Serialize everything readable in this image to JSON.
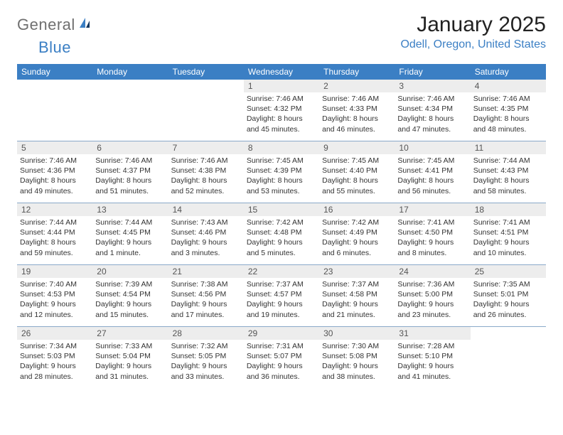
{
  "brand": {
    "part1": "General",
    "part2": "Blue"
  },
  "title": "January 2025",
  "location": "Odell, Oregon, United States",
  "colors": {
    "accent": "#3b7fc4",
    "header_bg": "#3b7fc4",
    "header_text": "#ffffff",
    "daynum_bg": "#ededed",
    "row_border": "#8aa9c9",
    "body_text": "#333333",
    "logo_gray": "#6f6f6f"
  },
  "day_labels": [
    "Sunday",
    "Monday",
    "Tuesday",
    "Wednesday",
    "Thursday",
    "Friday",
    "Saturday"
  ],
  "weeks": [
    [
      {
        "n": "",
        "sr": "",
        "ss": "",
        "dl": "",
        "empty": true
      },
      {
        "n": "",
        "sr": "",
        "ss": "",
        "dl": "",
        "empty": true
      },
      {
        "n": "",
        "sr": "",
        "ss": "",
        "dl": "",
        "empty": true
      },
      {
        "n": "1",
        "sr": "Sunrise: 7:46 AM",
        "ss": "Sunset: 4:32 PM",
        "dl": "Daylight: 8 hours and 45 minutes."
      },
      {
        "n": "2",
        "sr": "Sunrise: 7:46 AM",
        "ss": "Sunset: 4:33 PM",
        "dl": "Daylight: 8 hours and 46 minutes."
      },
      {
        "n": "3",
        "sr": "Sunrise: 7:46 AM",
        "ss": "Sunset: 4:34 PM",
        "dl": "Daylight: 8 hours and 47 minutes."
      },
      {
        "n": "4",
        "sr": "Sunrise: 7:46 AM",
        "ss": "Sunset: 4:35 PM",
        "dl": "Daylight: 8 hours and 48 minutes."
      }
    ],
    [
      {
        "n": "5",
        "sr": "Sunrise: 7:46 AM",
        "ss": "Sunset: 4:36 PM",
        "dl": "Daylight: 8 hours and 49 minutes."
      },
      {
        "n": "6",
        "sr": "Sunrise: 7:46 AM",
        "ss": "Sunset: 4:37 PM",
        "dl": "Daylight: 8 hours and 51 minutes."
      },
      {
        "n": "7",
        "sr": "Sunrise: 7:46 AM",
        "ss": "Sunset: 4:38 PM",
        "dl": "Daylight: 8 hours and 52 minutes."
      },
      {
        "n": "8",
        "sr": "Sunrise: 7:45 AM",
        "ss": "Sunset: 4:39 PM",
        "dl": "Daylight: 8 hours and 53 minutes."
      },
      {
        "n": "9",
        "sr": "Sunrise: 7:45 AM",
        "ss": "Sunset: 4:40 PM",
        "dl": "Daylight: 8 hours and 55 minutes."
      },
      {
        "n": "10",
        "sr": "Sunrise: 7:45 AM",
        "ss": "Sunset: 4:41 PM",
        "dl": "Daylight: 8 hours and 56 minutes."
      },
      {
        "n": "11",
        "sr": "Sunrise: 7:44 AM",
        "ss": "Sunset: 4:43 PM",
        "dl": "Daylight: 8 hours and 58 minutes."
      }
    ],
    [
      {
        "n": "12",
        "sr": "Sunrise: 7:44 AM",
        "ss": "Sunset: 4:44 PM",
        "dl": "Daylight: 8 hours and 59 minutes."
      },
      {
        "n": "13",
        "sr": "Sunrise: 7:44 AM",
        "ss": "Sunset: 4:45 PM",
        "dl": "Daylight: 9 hours and 1 minute."
      },
      {
        "n": "14",
        "sr": "Sunrise: 7:43 AM",
        "ss": "Sunset: 4:46 PM",
        "dl": "Daylight: 9 hours and 3 minutes."
      },
      {
        "n": "15",
        "sr": "Sunrise: 7:42 AM",
        "ss": "Sunset: 4:48 PM",
        "dl": "Daylight: 9 hours and 5 minutes."
      },
      {
        "n": "16",
        "sr": "Sunrise: 7:42 AM",
        "ss": "Sunset: 4:49 PM",
        "dl": "Daylight: 9 hours and 6 minutes."
      },
      {
        "n": "17",
        "sr": "Sunrise: 7:41 AM",
        "ss": "Sunset: 4:50 PM",
        "dl": "Daylight: 9 hours and 8 minutes."
      },
      {
        "n": "18",
        "sr": "Sunrise: 7:41 AM",
        "ss": "Sunset: 4:51 PM",
        "dl": "Daylight: 9 hours and 10 minutes."
      }
    ],
    [
      {
        "n": "19",
        "sr": "Sunrise: 7:40 AM",
        "ss": "Sunset: 4:53 PM",
        "dl": "Daylight: 9 hours and 12 minutes."
      },
      {
        "n": "20",
        "sr": "Sunrise: 7:39 AM",
        "ss": "Sunset: 4:54 PM",
        "dl": "Daylight: 9 hours and 15 minutes."
      },
      {
        "n": "21",
        "sr": "Sunrise: 7:38 AM",
        "ss": "Sunset: 4:56 PM",
        "dl": "Daylight: 9 hours and 17 minutes."
      },
      {
        "n": "22",
        "sr": "Sunrise: 7:37 AM",
        "ss": "Sunset: 4:57 PM",
        "dl": "Daylight: 9 hours and 19 minutes."
      },
      {
        "n": "23",
        "sr": "Sunrise: 7:37 AM",
        "ss": "Sunset: 4:58 PM",
        "dl": "Daylight: 9 hours and 21 minutes."
      },
      {
        "n": "24",
        "sr": "Sunrise: 7:36 AM",
        "ss": "Sunset: 5:00 PM",
        "dl": "Daylight: 9 hours and 23 minutes."
      },
      {
        "n": "25",
        "sr": "Sunrise: 7:35 AM",
        "ss": "Sunset: 5:01 PM",
        "dl": "Daylight: 9 hours and 26 minutes."
      }
    ],
    [
      {
        "n": "26",
        "sr": "Sunrise: 7:34 AM",
        "ss": "Sunset: 5:03 PM",
        "dl": "Daylight: 9 hours and 28 minutes."
      },
      {
        "n": "27",
        "sr": "Sunrise: 7:33 AM",
        "ss": "Sunset: 5:04 PM",
        "dl": "Daylight: 9 hours and 31 minutes."
      },
      {
        "n": "28",
        "sr": "Sunrise: 7:32 AM",
        "ss": "Sunset: 5:05 PM",
        "dl": "Daylight: 9 hours and 33 minutes."
      },
      {
        "n": "29",
        "sr": "Sunrise: 7:31 AM",
        "ss": "Sunset: 5:07 PM",
        "dl": "Daylight: 9 hours and 36 minutes."
      },
      {
        "n": "30",
        "sr": "Sunrise: 7:30 AM",
        "ss": "Sunset: 5:08 PM",
        "dl": "Daylight: 9 hours and 38 minutes."
      },
      {
        "n": "31",
        "sr": "Sunrise: 7:28 AM",
        "ss": "Sunset: 5:10 PM",
        "dl": "Daylight: 9 hours and 41 minutes."
      },
      {
        "n": "",
        "sr": "",
        "ss": "",
        "dl": "",
        "empty": true
      }
    ]
  ]
}
